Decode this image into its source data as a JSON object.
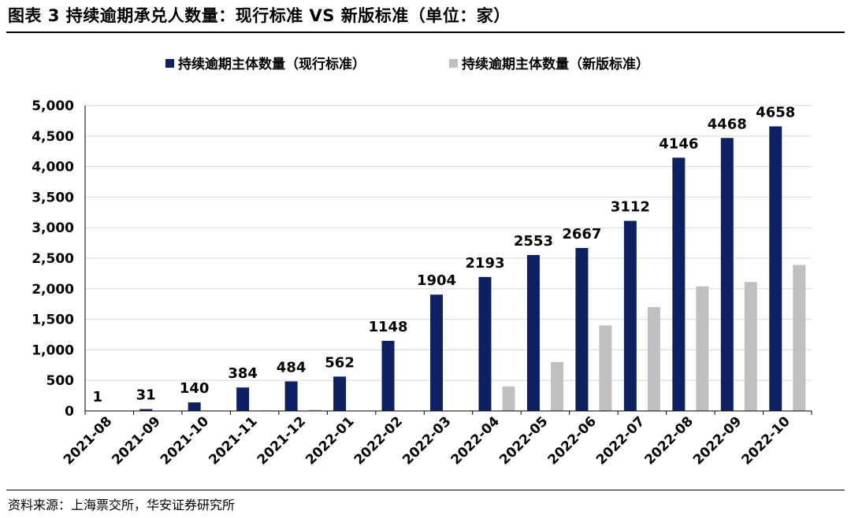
{
  "header": {
    "title": "图表 3  持续逾期承兑人数量：现行标准 VS 新版标准（单位：家）"
  },
  "footer": {
    "source": "资料来源：上海票交所，华安证券研究所"
  },
  "colors": {
    "current": "#0d2162",
    "new": "#c0c0c0",
    "axis": "#000000",
    "grid": "#d9d9d9"
  },
  "chart_data": {
    "type": "bar",
    "title": "",
    "xlabel": "",
    "ylabel": "",
    "ylim": [
      0,
      5000
    ],
    "yticks": [
      0,
      500,
      1000,
      1500,
      2000,
      2500,
      3000,
      3500,
      4000,
      4500,
      5000
    ],
    "ytick_labels": [
      "0",
      "500",
      "1,000",
      "1,500",
      "2,000",
      "2,500",
      "3,000",
      "3,500",
      "4,000",
      "4,500",
      "5,000"
    ],
    "grid": true,
    "legend_position": "top-center",
    "categories": [
      "2021-08",
      "2021-09",
      "2021-10",
      "2021-11",
      "2021-12",
      "2022-01",
      "2022-02",
      "2022-03",
      "2022-04",
      "2022-05",
      "2022-06",
      "2022-07",
      "2022-08",
      "2022-09",
      "2022-10"
    ],
    "series": [
      {
        "name": "持续逾期主体数量（现行标准）",
        "color": "#0d2162",
        "values": [
          1,
          31,
          140,
          384,
          484,
          562,
          1148,
          1904,
          2193,
          2553,
          2667,
          3112,
          4146,
          4468,
          4658
        ],
        "labels": [
          "1",
          "31",
          "140",
          "384",
          "484",
          "562",
          "1148",
          "1904",
          "2193",
          "2553",
          "2667",
          "3112",
          "4146",
          "4468",
          "4658"
        ]
      },
      {
        "name": "持续逾期主体数量（新版标准）",
        "color": "#c0c0c0",
        "values": [
          0,
          5,
          5,
          10,
          20,
          5,
          0,
          0,
          400,
          800,
          1400,
          1700,
          2040,
          2110,
          2390
        ]
      }
    ]
  }
}
